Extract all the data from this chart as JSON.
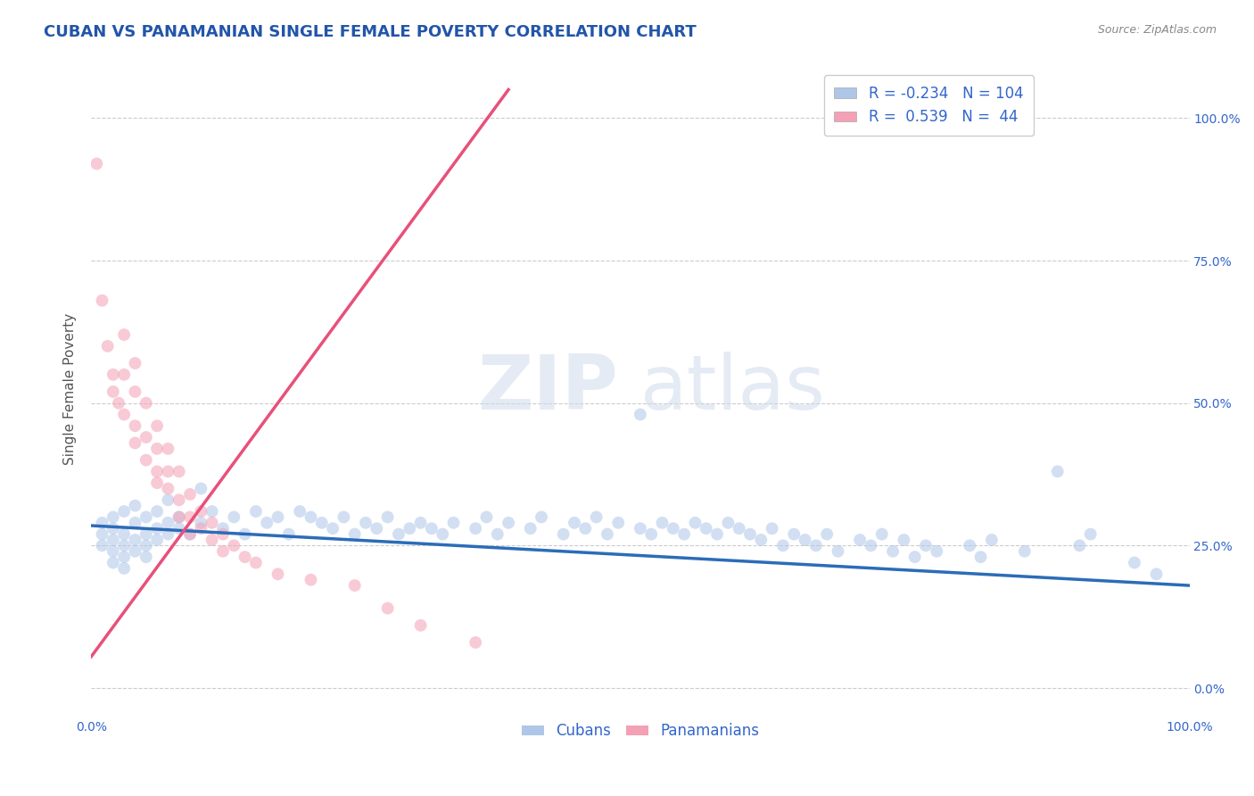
{
  "title": "CUBAN VS PANAMANIAN SINGLE FEMALE POVERTY CORRELATION CHART",
  "source_text": "Source: ZipAtlas.com",
  "ylabel": "Single Female Poverty",
  "xlim": [
    0.0,
    1.0
  ],
  "ylim": [
    -0.05,
    1.1
  ],
  "x_tick_labels": [
    "0.0%",
    "",
    "",
    "",
    "100.0%"
  ],
  "y_tick_labels_right": [
    "0.0%",
    "25.0%",
    "50.0%",
    "75.0%",
    "100.0%"
  ],
  "cuban_color": "#aec6e8",
  "panamanian_color": "#f4a0b5",
  "cuban_line_color": "#2b6cb8",
  "panamanian_line_color": "#e8507a",
  "R_cuban": -0.234,
  "N_cuban": 104,
  "R_panamanian": 0.539,
  "N_panamanian": 44,
  "legend_label_cuban": "Cubans",
  "legend_label_panamanian": "Panamanians",
  "watermark_zip": "ZIP",
  "watermark_atlas": "atlas",
  "background_color": "#ffffff",
  "grid_color": "#cccccc",
  "title_color": "#2255aa",
  "axis_color": "#3366cc",
  "cuban_points": [
    [
      0.01,
      0.29
    ],
    [
      0.01,
      0.27
    ],
    [
      0.01,
      0.25
    ],
    [
      0.02,
      0.3
    ],
    [
      0.02,
      0.26
    ],
    [
      0.02,
      0.24
    ],
    [
      0.02,
      0.22
    ],
    [
      0.02,
      0.28
    ],
    [
      0.03,
      0.31
    ],
    [
      0.03,
      0.27
    ],
    [
      0.03,
      0.25
    ],
    [
      0.03,
      0.23
    ],
    [
      0.03,
      0.21
    ],
    [
      0.04,
      0.32
    ],
    [
      0.04,
      0.29
    ],
    [
      0.04,
      0.26
    ],
    [
      0.04,
      0.24
    ],
    [
      0.05,
      0.3
    ],
    [
      0.05,
      0.27
    ],
    [
      0.05,
      0.25
    ],
    [
      0.05,
      0.23
    ],
    [
      0.06,
      0.31
    ],
    [
      0.06,
      0.28
    ],
    [
      0.06,
      0.26
    ],
    [
      0.07,
      0.33
    ],
    [
      0.07,
      0.29
    ],
    [
      0.07,
      0.27
    ],
    [
      0.08,
      0.3
    ],
    [
      0.08,
      0.28
    ],
    [
      0.09,
      0.27
    ],
    [
      0.1,
      0.35
    ],
    [
      0.1,
      0.29
    ],
    [
      0.11,
      0.31
    ],
    [
      0.12,
      0.28
    ],
    [
      0.13,
      0.3
    ],
    [
      0.14,
      0.27
    ],
    [
      0.15,
      0.31
    ],
    [
      0.16,
      0.29
    ],
    [
      0.17,
      0.3
    ],
    [
      0.18,
      0.27
    ],
    [
      0.19,
      0.31
    ],
    [
      0.2,
      0.3
    ],
    [
      0.21,
      0.29
    ],
    [
      0.22,
      0.28
    ],
    [
      0.23,
      0.3
    ],
    [
      0.24,
      0.27
    ],
    [
      0.25,
      0.29
    ],
    [
      0.26,
      0.28
    ],
    [
      0.27,
      0.3
    ],
    [
      0.28,
      0.27
    ],
    [
      0.29,
      0.28
    ],
    [
      0.3,
      0.29
    ],
    [
      0.31,
      0.28
    ],
    [
      0.32,
      0.27
    ],
    [
      0.33,
      0.29
    ],
    [
      0.35,
      0.28
    ],
    [
      0.36,
      0.3
    ],
    [
      0.37,
      0.27
    ],
    [
      0.38,
      0.29
    ],
    [
      0.4,
      0.28
    ],
    [
      0.41,
      0.3
    ],
    [
      0.43,
      0.27
    ],
    [
      0.44,
      0.29
    ],
    [
      0.45,
      0.28
    ],
    [
      0.46,
      0.3
    ],
    [
      0.47,
      0.27
    ],
    [
      0.48,
      0.29
    ],
    [
      0.5,
      0.48
    ],
    [
      0.5,
      0.28
    ],
    [
      0.51,
      0.27
    ],
    [
      0.52,
      0.29
    ],
    [
      0.53,
      0.28
    ],
    [
      0.54,
      0.27
    ],
    [
      0.55,
      0.29
    ],
    [
      0.56,
      0.28
    ],
    [
      0.57,
      0.27
    ],
    [
      0.58,
      0.29
    ],
    [
      0.59,
      0.28
    ],
    [
      0.6,
      0.27
    ],
    [
      0.61,
      0.26
    ],
    [
      0.62,
      0.28
    ],
    [
      0.63,
      0.25
    ],
    [
      0.64,
      0.27
    ],
    [
      0.65,
      0.26
    ],
    [
      0.66,
      0.25
    ],
    [
      0.67,
      0.27
    ],
    [
      0.68,
      0.24
    ],
    [
      0.7,
      0.26
    ],
    [
      0.71,
      0.25
    ],
    [
      0.72,
      0.27
    ],
    [
      0.73,
      0.24
    ],
    [
      0.74,
      0.26
    ],
    [
      0.75,
      0.23
    ],
    [
      0.76,
      0.25
    ],
    [
      0.77,
      0.24
    ],
    [
      0.8,
      0.25
    ],
    [
      0.81,
      0.23
    ],
    [
      0.82,
      0.26
    ],
    [
      0.85,
      0.24
    ],
    [
      0.88,
      0.38
    ],
    [
      0.9,
      0.25
    ],
    [
      0.91,
      0.27
    ],
    [
      0.95,
      0.22
    ],
    [
      0.97,
      0.2
    ]
  ],
  "panamanian_points": [
    [
      0.005,
      0.92
    ],
    [
      0.01,
      0.68
    ],
    [
      0.015,
      0.6
    ],
    [
      0.02,
      0.55
    ],
    [
      0.02,
      0.52
    ],
    [
      0.025,
      0.5
    ],
    [
      0.03,
      0.62
    ],
    [
      0.03,
      0.55
    ],
    [
      0.03,
      0.48
    ],
    [
      0.04,
      0.57
    ],
    [
      0.04,
      0.52
    ],
    [
      0.04,
      0.46
    ],
    [
      0.04,
      0.43
    ],
    [
      0.05,
      0.5
    ],
    [
      0.05,
      0.44
    ],
    [
      0.05,
      0.4
    ],
    [
      0.06,
      0.46
    ],
    [
      0.06,
      0.42
    ],
    [
      0.06,
      0.38
    ],
    [
      0.06,
      0.36
    ],
    [
      0.07,
      0.42
    ],
    [
      0.07,
      0.38
    ],
    [
      0.07,
      0.35
    ],
    [
      0.08,
      0.38
    ],
    [
      0.08,
      0.33
    ],
    [
      0.08,
      0.3
    ],
    [
      0.09,
      0.34
    ],
    [
      0.09,
      0.3
    ],
    [
      0.09,
      0.27
    ],
    [
      0.1,
      0.31
    ],
    [
      0.1,
      0.28
    ],
    [
      0.11,
      0.29
    ],
    [
      0.11,
      0.26
    ],
    [
      0.12,
      0.27
    ],
    [
      0.12,
      0.24
    ],
    [
      0.13,
      0.25
    ],
    [
      0.14,
      0.23
    ],
    [
      0.15,
      0.22
    ],
    [
      0.17,
      0.2
    ],
    [
      0.2,
      0.19
    ],
    [
      0.24,
      0.18
    ],
    [
      0.27,
      0.14
    ],
    [
      0.3,
      0.11
    ],
    [
      0.35,
      0.08
    ]
  ],
  "title_fontsize": 13,
  "axis_label_fontsize": 11,
  "tick_fontsize": 10,
  "legend_fontsize": 12,
  "dot_size": 100,
  "dot_alpha": 0.55,
  "line_width": 2.5
}
